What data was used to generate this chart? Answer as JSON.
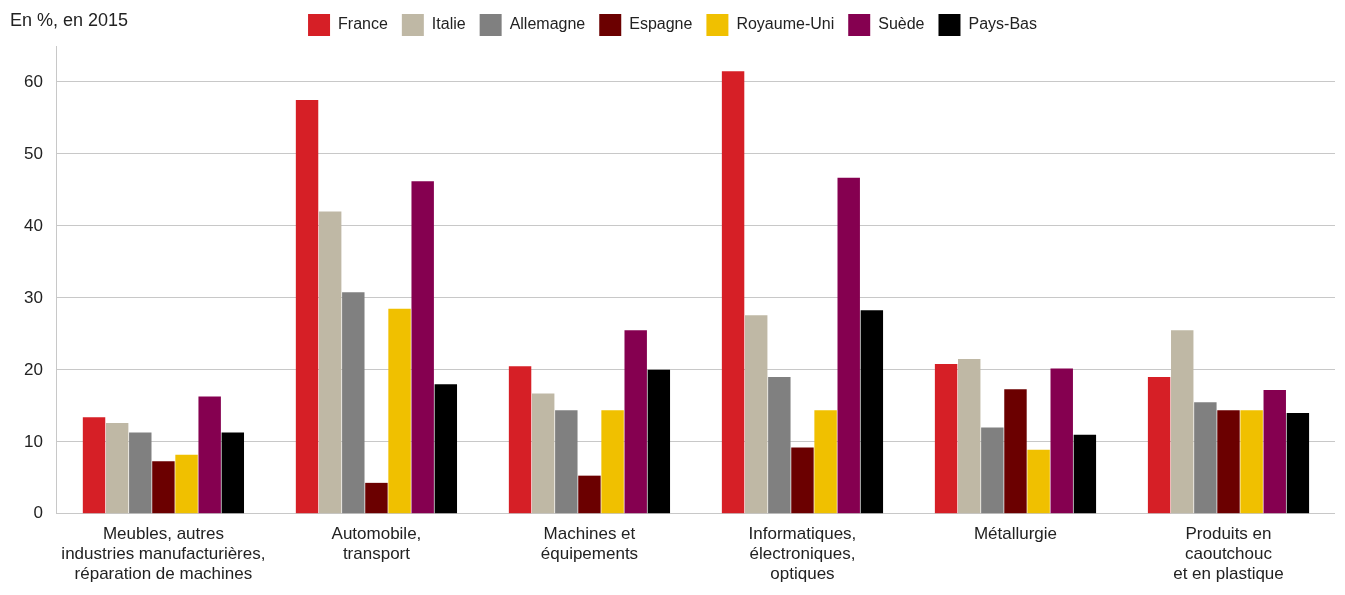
{
  "chart_data": {
    "type": "bar",
    "ylabel": "En %, en 2015",
    "categories": [
      "Meubles, autres\nindustries manufacturières,\nréparation de machines",
      "Automobile,\ntransport",
      "Machines et\néquipements",
      "Informatiques,\nélectroniques,\noptiques",
      "Métallurgie",
      "Produits en\ncaoutchouc\net en plastique"
    ],
    "series": [
      {
        "name": "France",
        "color": "#d61f26",
        "values": [
          13.4,
          57.5,
          20.5,
          61.5,
          20.8,
          19.0
        ]
      },
      {
        "name": "Italie",
        "color": "#bfb8a5",
        "values": [
          12.6,
          42.0,
          16.7,
          27.6,
          21.5,
          25.5
        ]
      },
      {
        "name": "Allemagne",
        "color": "#808080",
        "values": [
          11.3,
          30.8,
          14.4,
          19.0,
          12.0,
          15.5
        ]
      },
      {
        "name": "Espagne",
        "color": "#6b0000",
        "values": [
          7.3,
          4.3,
          5.3,
          9.2,
          17.3,
          14.4
        ]
      },
      {
        "name": "Royaume-Uni",
        "color": "#f0c000",
        "values": [
          8.2,
          28.5,
          14.4,
          14.4,
          8.9,
          14.4
        ]
      },
      {
        "name": "Suède",
        "color": "#850050",
        "values": [
          16.3,
          46.2,
          25.5,
          46.7,
          20.2,
          17.2
        ]
      },
      {
        "name": "Pays-Bas",
        "color": "#000000",
        "values": [
          11.3,
          18.0,
          20.0,
          28.3,
          11.0,
          14.0
        ]
      }
    ],
    "ylim": [
      0,
      65
    ],
    "yticks": [
      0,
      10,
      20,
      30,
      40,
      50,
      60
    ],
    "grid": "y",
    "legend": "top"
  }
}
